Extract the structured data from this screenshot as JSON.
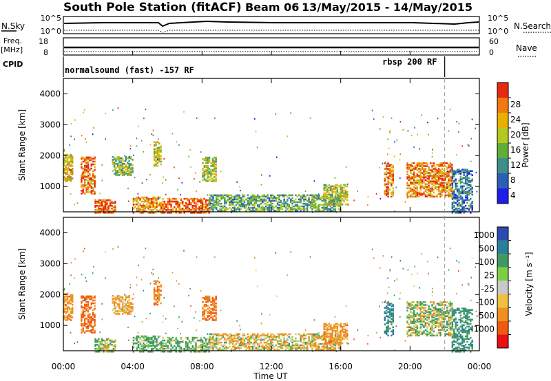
{
  "header": {
    "station": "South Pole Station (fitACF)",
    "beam": "Beam 06",
    "date_range": "13/May/2015 - 14/May/2015"
  },
  "strip_labels": {
    "nsky": "N.Sky",
    "nsearch": "N.Search",
    "freq": "Freq.",
    "freq_unit": "[MHz]",
    "nave": "Nave",
    "cpid": "CPID",
    "nsky_ticks": [
      "10^5",
      "10^0"
    ],
    "nsearch_ticks": [
      "10^5",
      "10^0"
    ],
    "freq_ticks": [
      "18",
      "8"
    ],
    "nave_ticks": [
      "60",
      "0"
    ]
  },
  "cpid_labels": {
    "left": "normalsound (fast) -157 RF",
    "right": "rbsp 200 RF",
    "switch_hour": 22.0
  },
  "power_panel": {
    "ylabel": "Slant Range [km]",
    "cbar_label": "Power [dB]",
    "cbar_ticks": [
      "4",
      "8",
      "12",
      "16",
      "20",
      "24",
      "28"
    ],
    "cbar_colors": [
      "#1e1ee8",
      "#2a5fb5",
      "#3e8f8a",
      "#5fae3a",
      "#b5c820",
      "#e8b000",
      "#f07a10",
      "#e82a10"
    ]
  },
  "velocity_panel": {
    "ylabel": "Slant Range [km]",
    "cbar_label": "Velocity [m s⁻¹]",
    "cbar_ticks": [
      "1000",
      "500",
      "100",
      "25",
      "-25",
      "-100",
      "-500",
      "-1000"
    ],
    "cbar_colors": [
      "#2a4bb0",
      "#2a7f9a",
      "#3e9a60",
      "#7ad040",
      "#c8c8c8",
      "#f0c040",
      "#f09020",
      "#f05a10",
      "#e81010"
    ]
  },
  "x_axis": {
    "label": "Time UT",
    "tick_labels": [
      "00:00",
      "04:00",
      "08:00",
      "12:00",
      "16:00",
      "20:00",
      "00:00"
    ]
  },
  "chart_data": {
    "type": "heatmap",
    "title": "South Pole Station (fitACF)  Beam 06  13/May/2015 - 14/May/2015",
    "xlabel": "Time UT",
    "ylabel": "Slant Range [km]",
    "xlim_hours": [
      0,
      24
    ],
    "ylim_km": [
      180,
      4500
    ],
    "y_ticks": [
      1000,
      2000,
      3000,
      4000
    ],
    "power_scale_db": [
      0,
      30
    ],
    "velocity_scale": [
      -1000,
      1000
    ],
    "echo_regions": [
      {
        "t0": 0.0,
        "t1": 0.5,
        "r0": 1200,
        "r1": 2100,
        "power": 20,
        "vel": -300
      },
      {
        "t0": 1.0,
        "t1": 1.8,
        "r0": 800,
        "r1": 2000,
        "power": 24,
        "vel": -600
      },
      {
        "t0": 1.8,
        "t1": 3.0,
        "r0": 180,
        "r1": 600,
        "power": 26,
        "vel": 100
      },
      {
        "t0": 2.8,
        "t1": 4.0,
        "r0": 1400,
        "r1": 2000,
        "power": 14,
        "vel": -200
      },
      {
        "t0": 4.0,
        "t1": 5.6,
        "r0": 180,
        "r1": 700,
        "power": 22,
        "vel": 200
      },
      {
        "t0": 5.2,
        "t1": 5.6,
        "r0": 1700,
        "r1": 2500,
        "power": 18,
        "vel": -400
      },
      {
        "t0": 5.6,
        "t1": 8.4,
        "r0": 180,
        "r1": 650,
        "power": 26,
        "vel": 150
      },
      {
        "t0": 8.0,
        "t1": 8.8,
        "r0": 1200,
        "r1": 2000,
        "power": 16,
        "vel": -500
      },
      {
        "t0": 8.4,
        "t1": 16.0,
        "r0": 250,
        "r1": 750,
        "power": 12,
        "vel": -80
      },
      {
        "t0": 15.0,
        "t1": 16.4,
        "r0": 450,
        "r1": 1100,
        "power": 16,
        "vel": -300
      },
      {
        "t0": 18.5,
        "t1": 19.0,
        "r0": 700,
        "r1": 1800,
        "power": 24,
        "vel": 600
      },
      {
        "t0": 19.8,
        "t1": 22.4,
        "r0": 700,
        "r1": 1800,
        "power": 24,
        "vel": 60
      },
      {
        "t0": 22.4,
        "t1": 23.6,
        "r0": 180,
        "r1": 1600,
        "power": 8,
        "vel": 400
      }
    ]
  }
}
